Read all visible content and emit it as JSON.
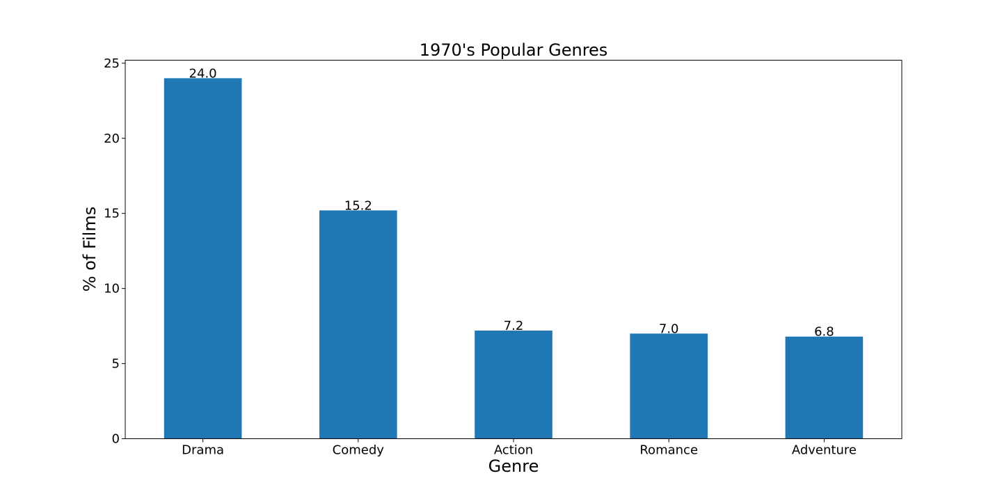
{
  "chart_data": {
    "type": "bar",
    "title": "1970's Popular Genres",
    "xlabel": "Genre",
    "ylabel": "% of Films",
    "categories": [
      "Drama",
      "Comedy",
      "Action",
      "Romance",
      "Adventure"
    ],
    "values": [
      24.0,
      15.2,
      7.2,
      7.0,
      6.8
    ],
    "data_labels": [
      "24.0",
      "15.2",
      "7.2",
      "7.0",
      "6.8"
    ],
    "ylim": [
      0,
      25.2
    ],
    "yticks": [
      0,
      5,
      10,
      15,
      20,
      25
    ],
    "ytick_labels": [
      "0",
      "5",
      "10",
      "15",
      "20",
      "25"
    ],
    "grid": false,
    "legend": "none",
    "colors": {
      "bar": "#1f77b4"
    }
  }
}
